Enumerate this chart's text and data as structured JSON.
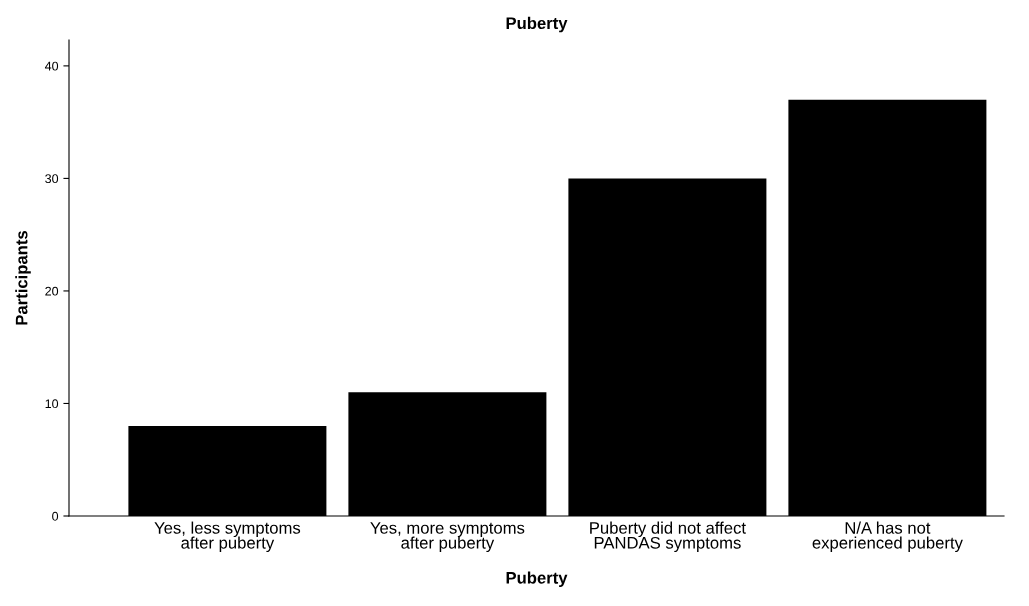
{
  "chart_data": {
    "type": "bar",
    "title": "Puberty",
    "xlabel": "Puberty",
    "ylabel": "Participants",
    "categories": [
      "Yes, less symptoms\nafter puberty",
      "Yes, more symptoms\nafter puberty",
      "Puberty did not affect\nPANDAS symptoms",
      "N/A has not\nexperienced puberty"
    ],
    "values": [
      8,
      11,
      30,
      37
    ],
    "color": "#000000",
    "ylim": [
      0,
      42.3
    ],
    "yticks": [
      0,
      10,
      20,
      30,
      40
    ],
    "grid": false,
    "legend": false
  }
}
